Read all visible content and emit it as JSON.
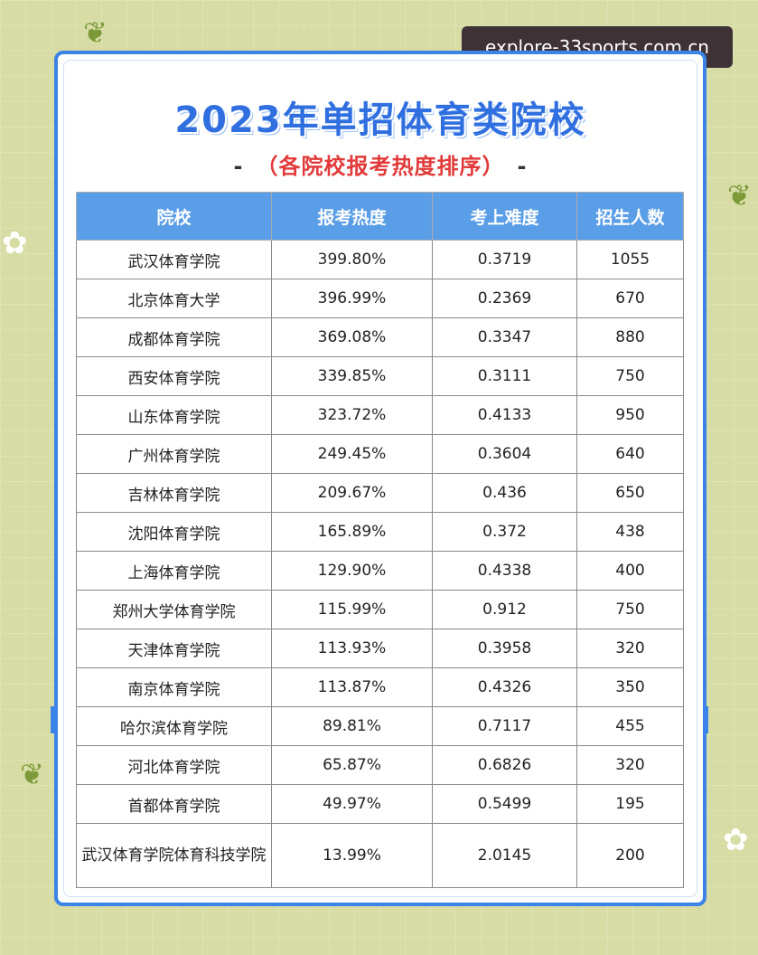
{
  "watermark": "explore-33sports.com.cn",
  "title": "2023年单招体育类院校",
  "subtitle_dash_left": "-",
  "subtitle": "（各院校报考热度排序）",
  "subtitle_dash_right": "-",
  "table": {
    "headers": [
      "院校",
      "报考热度",
      "考上难度",
      "招生人数"
    ],
    "rows": [
      [
        "武汉体育学院",
        "399.80%",
        "0.3719",
        "1055"
      ],
      [
        "北京体育大学",
        "396.99%",
        "0.2369",
        "670"
      ],
      [
        "成都体育学院",
        "369.08%",
        "0.3347",
        "880"
      ],
      [
        "西安体育学院",
        "339.85%",
        "0.3111",
        "750"
      ],
      [
        "山东体育学院",
        "323.72%",
        "0.4133",
        "950"
      ],
      [
        "广州体育学院",
        "249.45%",
        "0.3604",
        "640"
      ],
      [
        "吉林体育学院",
        "209.67%",
        "0.436",
        "650"
      ],
      [
        "沈阳体育学院",
        "165.89%",
        "0.372",
        "438"
      ],
      [
        "上海体育学院",
        "129.90%",
        "0.4338",
        "400"
      ],
      [
        "郑州大学体育学院",
        "115.99%",
        "0.912",
        "750"
      ],
      [
        "天津体育学院",
        "113.93%",
        "0.3958",
        "320"
      ],
      [
        "南京体育学院",
        "113.87%",
        "0.4326",
        "350"
      ],
      [
        "哈尔滨体育学院",
        "89.81%",
        "0.7117",
        "455"
      ],
      [
        "河北体育学院",
        "65.87%",
        "0.6826",
        "320"
      ],
      [
        "首都体育学院",
        "49.97%",
        "0.5499",
        "195"
      ],
      [
        "武汉体育学院体育科技学院",
        "13.99%",
        "2.0145",
        "200"
      ]
    ]
  },
  "colors": {
    "accent": "#3b83e6",
    "header_bg": "#5b9ee8",
    "subtitle": "#e23a3a",
    "background": "#d6dca4"
  },
  "decor_icons": [
    "flower-icon",
    "leaf-icon"
  ]
}
